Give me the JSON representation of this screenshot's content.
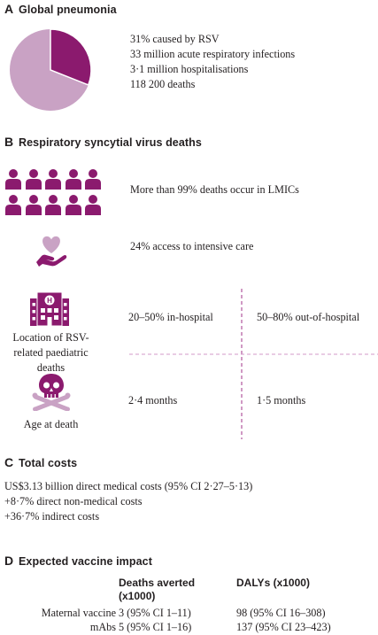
{
  "colors": {
    "accent": "#8b1a6e",
    "accent_light": "#c9a2c4",
    "divider": "#a0338a"
  },
  "sections": {
    "a": {
      "letter": "A",
      "title": "Global pneumonia",
      "pie_fraction": 0.31,
      "stats": [
        "31% caused by RSV",
        "33 million acute respiratory infections",
        "3·1 million hospitalisations",
        "118 200 deaths"
      ]
    },
    "b": {
      "letter": "B",
      "title": "Respiratory syncytial virus deaths",
      "lmic_text": "More than 99% deaths occur in LMICs",
      "icu_text": "24% access to intensive care",
      "location_label": "Location of RSV-related paediatric deaths",
      "in_hospital": "20–50% in-hospital",
      "out_hospital": "50–80% out-of-hospital",
      "age_label": "Age at death",
      "age_in": "2·4 months",
      "age_out": "1·5 months"
    },
    "c": {
      "letter": "C",
      "title": "Total costs",
      "lines": [
        "US$3.13 billion direct medical costs (95% CI 2·27–5·13)",
        "+8·7% direct non-medical costs",
        "+36·7% indirect costs"
      ]
    },
    "d": {
      "letter": "D",
      "title": "Expected vaccine impact",
      "col1_header": "Deaths averted (x1000)",
      "col2_header": "DALYs (x1000)",
      "rows": [
        {
          "label": "Maternal vaccine",
          "deaths": "3 (95% CI 1–11)",
          "dalys": "98 (95% CI 16–308)"
        },
        {
          "label": "mAbs",
          "deaths": "5 (95% CI 1–16)",
          "dalys": "137 (95% CI 23–423)"
        }
      ]
    }
  }
}
